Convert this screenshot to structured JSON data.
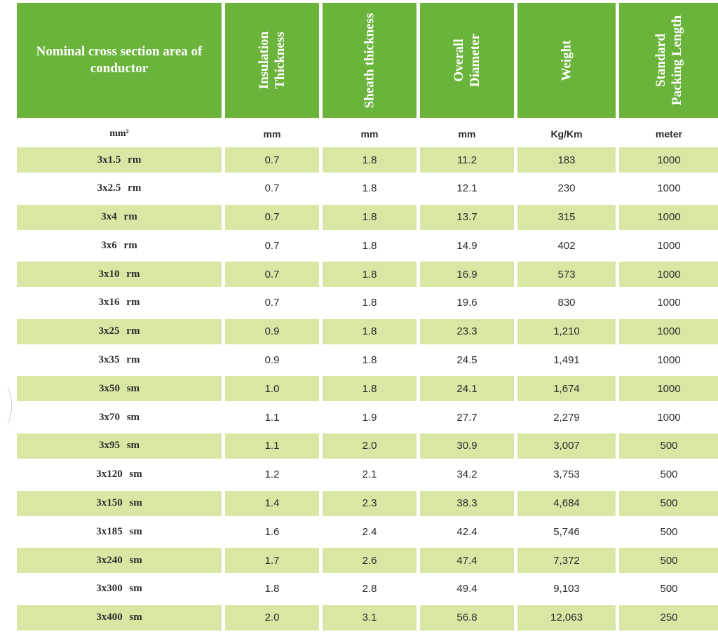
{
  "table": {
    "headers": [
      [
        "Nominal cross section area of",
        "conductor"
      ],
      [
        "Insulation",
        "Thickness"
      ],
      [
        "Sheath thickness"
      ],
      [
        "Overall",
        "Diameter"
      ],
      [
        "Weight"
      ],
      [
        "Standard",
        "Packing Length"
      ]
    ],
    "units": [
      "mm²",
      "mm",
      "mm",
      "mm",
      "Kg/Km",
      "meter"
    ],
    "rows": [
      [
        "3x1.5 rm",
        "0.7",
        "1.8",
        "11.2",
        "183",
        "1000"
      ],
      [
        "3x2.5 rm",
        "0.7",
        "1.8",
        "12.1",
        "230",
        "1000"
      ],
      [
        "3x4 rm",
        "0.7",
        "1.8",
        "13.7",
        "315",
        "1000"
      ],
      [
        "3x6 rm",
        "0.7",
        "1.8",
        "14.9",
        "402",
        "1000"
      ],
      [
        "3x10 rm",
        "0.7",
        "1.8",
        "16.9",
        "573",
        "1000"
      ],
      [
        "3x16 rm",
        "0.7",
        "1.8",
        "19.6",
        "830",
        "1000"
      ],
      [
        "3x25 rm",
        "0.9",
        "1.8",
        "23.3",
        "1,210",
        "1000"
      ],
      [
        "3x35 rm",
        "0.9",
        "1.8",
        "24.5",
        "1,491",
        "1000"
      ],
      [
        "3x50 sm",
        "1.0",
        "1.8",
        "24.1",
        "1,674",
        "1000"
      ],
      [
        "3x70 sm",
        "1.1",
        "1.9",
        "27.7",
        "2,279",
        "1000"
      ],
      [
        "3x95 sm",
        "1.1",
        "2.0",
        "30.9",
        "3,007",
        "500"
      ],
      [
        "3x120 sm",
        "1.2",
        "2.1",
        "34.2",
        "3,753",
        "500"
      ],
      [
        "3x150 sm",
        "1.4",
        "2.3",
        "38.3",
        "4,684",
        "500"
      ],
      [
        "3x185 sm",
        "1.6",
        "2.4",
        "42.4",
        "5,746",
        "500"
      ],
      [
        "3x240 sm",
        "1.7",
        "2.6",
        "47.4",
        "7,372",
        "500"
      ],
      [
        "3x300 sm",
        "1.8",
        "2.8",
        "49.4",
        "9,103",
        "500"
      ],
      [
        "3x400 sm",
        "2.0",
        "3.1",
        "56.8",
        "12,063",
        "250"
      ]
    ]
  },
  "colors": {
    "header_green": "#6ab43c",
    "row_shade": "#d9e7a4"
  }
}
